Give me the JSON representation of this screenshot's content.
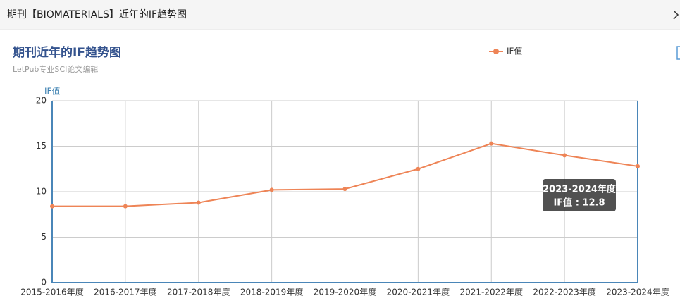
{
  "header": {
    "title": "期刊【BIOMATERIALS】近年的IF趋势图"
  },
  "chart_data": {
    "type": "line",
    "title": "期刊近年的IF趋势图",
    "subtitle": "LetPub专业SCI论文编辑",
    "y_label": "IF值",
    "categories": [
      "2015-2016年度",
      "2016-2017年度",
      "2017-2018年度",
      "2018-2019年度",
      "2019-2020年度",
      "2020-2021年度",
      "2021-2022年度",
      "2022-2023年度",
      "2023-2024年度"
    ],
    "series": [
      {
        "name": "IF值",
        "color": "#ee8456",
        "values": [
          8.4,
          8.4,
          8.8,
          10.2,
          10.3,
          12.5,
          15.3,
          14.0,
          12.8
        ]
      }
    ],
    "ylim": [
      0,
      20
    ],
    "yticks": [
      0,
      5,
      10,
      15,
      20
    ],
    "grid": true,
    "legend": "top",
    "tooltip": {
      "title": "2023-2024年度",
      "text": "IF值 : 12.8"
    }
  }
}
